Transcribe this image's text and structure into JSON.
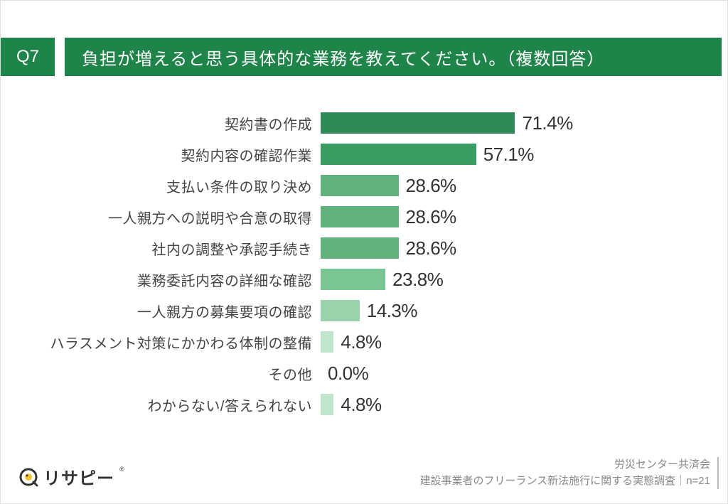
{
  "header": {
    "badge": "Q7",
    "title": "負担が増えると思う具体的な業務を教えてください。（複数回答）"
  },
  "chart": {
    "type": "bar",
    "max_value": 100,
    "bar_scale_percent": 72,
    "label_fontsize": 20,
    "value_fontsize": 26,
    "value_color": "#333333",
    "label_color": "#444444",
    "items": [
      {
        "label": "契約書の作成",
        "value": 71.4,
        "display": "71.4%",
        "color": "#2e8b57"
      },
      {
        "label": "契約内容の確認作業",
        "value": 57.1,
        "display": "57.1%",
        "color": "#3a9b63"
      },
      {
        "label": "支払い条件の取り決め",
        "value": 28.6,
        "display": "28.6%",
        "color": "#5fb27d"
      },
      {
        "label": "一人親方への説明や合意の取得",
        "value": 28.6,
        "display": "28.6%",
        "color": "#5fb27d"
      },
      {
        "label": "社内の調整や承認手続き",
        "value": 28.6,
        "display": "28.6%",
        "color": "#5fb27d"
      },
      {
        "label": "業務委託内容の詳細な確認",
        "value": 23.8,
        "display": "23.8%",
        "color": "#7bc595"
      },
      {
        "label": "一人親方の募集要項の確認",
        "value": 14.3,
        "display": "14.3%",
        "color": "#99d4ad"
      },
      {
        "label": "ハラスメント対策にかかわる体制の整備",
        "value": 4.8,
        "display": "4.8%",
        "color": "#c0e4cc"
      },
      {
        "label": "その他",
        "value": 0.0,
        "display": "0.0%",
        "color": "#c0e4cc"
      },
      {
        "label": "わからない/答えられない",
        "value": 4.8,
        "display": "4.8%",
        "color": "#c0e4cc"
      }
    ]
  },
  "footer": {
    "logo_text": "リサピー",
    "logo_sub": "®",
    "credit_line1": "労災センター共済会",
    "credit_line2_prefix": "建設事業者のフリーランス新法施行に関する実態調査",
    "credit_sep": "｜",
    "credit_n": "n=21"
  },
  "colors": {
    "header_bg": "#1e8449",
    "header_text": "#ffffff",
    "page_bg": "#ffffff"
  }
}
